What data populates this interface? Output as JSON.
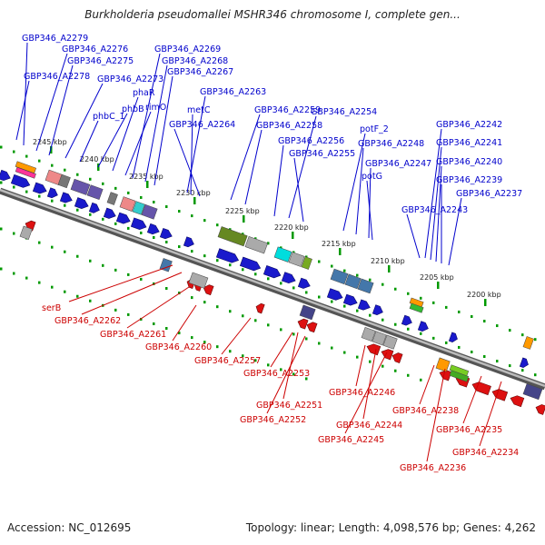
{
  "title": "Burkholderia pseudomallei MSHR346 chromosome I, complete gen...",
  "footer": {
    "accession": "Accession: NC_012695",
    "summary": "Topology: linear; Length: 4,098,576 bp; Genes: 4,262"
  },
  "colors": {
    "forward_label": "#0000cc",
    "reverse_label": "#cc0000",
    "backbone": "#888888",
    "tick": "#009900",
    "forward_gene": "#1a1acc",
    "reverse_gene": "#dd1111"
  },
  "scale_labels": [
    "2245 kbp",
    "2240 kbp",
    "2235 kbp",
    "2230 kbp",
    "2225 kbp",
    "2220 kbp",
    "2215 kbp",
    "2210 kbp",
    "2205 kbp",
    "2200 kbp"
  ],
  "forward_labels": [
    "GBP346_A2279",
    "GBP346_A2276",
    "GBP346_A2275",
    "GBP346_A2278",
    "phbC_1",
    "phbB",
    "phaR",
    "rimO",
    "GBP346_A2273",
    "GBP346_A2269",
    "GBP346_A2268",
    "GBP346_A2267",
    "GBP346_A2263",
    "metC",
    "GBP346_A2264",
    "GBP346_A2259",
    "GBP346_A2258",
    "GBP346_A2254",
    "GBP346_A2256",
    "GBP346_A2255",
    "potF_2",
    "GBP346_A2248",
    "GBP346_A2247",
    "potG",
    "GBP346_A2242",
    "GBP346_A2241",
    "GBP346_A2240",
    "GBP346_A2239",
    "GBP346_A2237",
    "GBP346_A2243"
  ],
  "reverse_labels": [
    "serB",
    "GBP346_A2262",
    "GBP346_A2261",
    "GBP346_A2260",
    "GBP346_A2257",
    "GBP346_A2253",
    "GBP346_A2251",
    "GBP346_A2252",
    "GBP346_A2246",
    "GBP346_A2244",
    "GBP346_A2245",
    "GBP346_A2238",
    "GBP346_A2235",
    "GBP346_A2234",
    "GBP346_A2236"
  ]
}
